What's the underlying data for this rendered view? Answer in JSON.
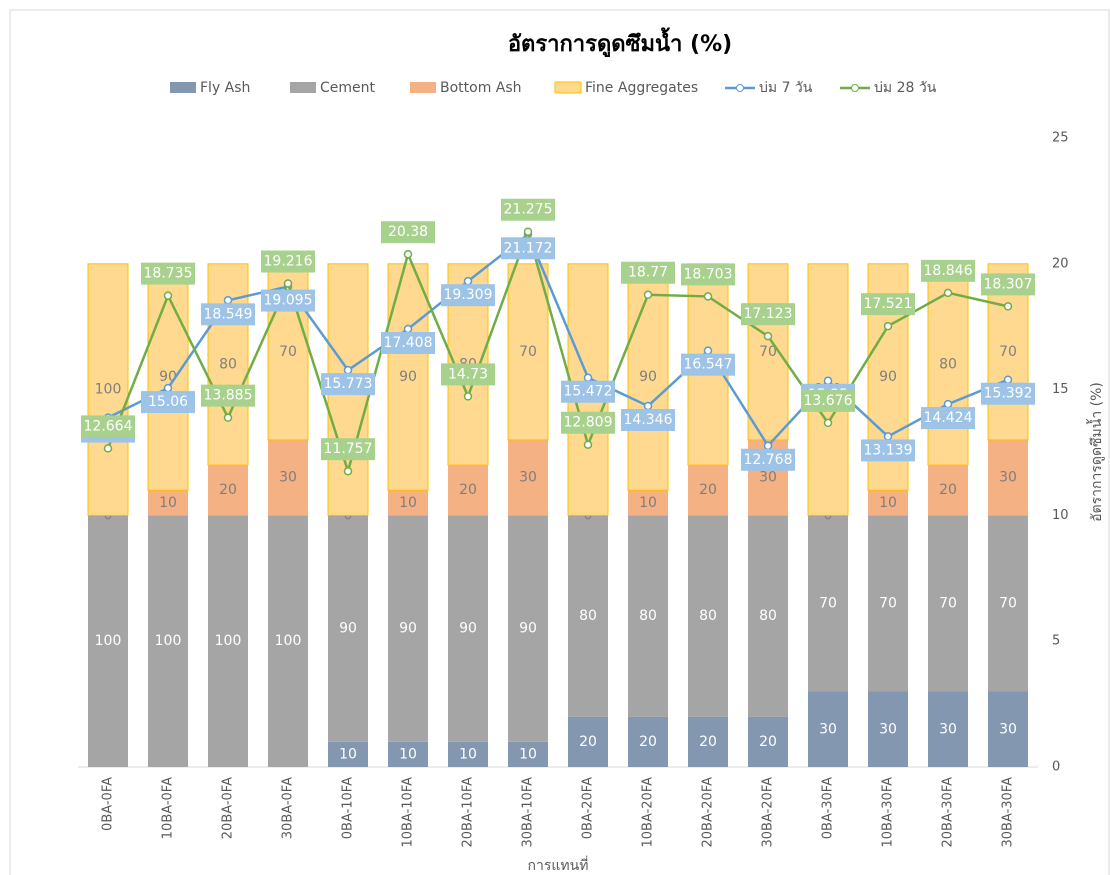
{
  "chart_data": {
    "type": "bar",
    "title": "อัตราการดูดซึมน้ำ  (%)",
    "x_label": "การแทนที่",
    "y2_label": "อัตราการดูดซึมน้ำ (%)",
    "categories": [
      "0BA-0FA",
      "10BA-0FA",
      "20BA-0FA",
      "30BA-0FA",
      "0BA-10FA",
      "10BA-10FA",
      "20BA-10FA",
      "30BA-10FA",
      "0BA-20FA",
      "10BA-20FA",
      "20BA-20FA",
      "30BA-20FA",
      "0BA-30FA",
      "10BA-30FA",
      "20BA-30FA",
      "30BA-30FA"
    ],
    "ylim": [
      0,
      250
    ],
    "y2lim": [
      0,
      25
    ],
    "y2ticks": [
      0,
      5,
      10,
      15,
      20,
      25
    ],
    "grid": false,
    "legend": "top",
    "series": [
      {
        "name": "Fly Ash",
        "type": "bar",
        "color": "#8497b0",
        "label_color": "#ffffff",
        "values": [
          0,
          0,
          0,
          0,
          10,
          10,
          10,
          10,
          20,
          20,
          20,
          20,
          30,
          30,
          30,
          30
        ],
        "value_labels": [
          null,
          null,
          null,
          null,
          "10",
          "10",
          "10",
          "10",
          "20",
          "20",
          "20",
          "20",
          "30",
          "30",
          "30",
          "30"
        ]
      },
      {
        "name": "Cement",
        "type": "bar",
        "color": "#a5a5a5",
        "label_color": "#ffffff",
        "values": [
          100,
          100,
          100,
          100,
          90,
          90,
          90,
          90,
          80,
          80,
          80,
          80,
          70,
          70,
          70,
          70
        ]
      },
      {
        "name": "Bottom Ash",
        "type": "bar",
        "color": "#f4b183",
        "label_color": "#7f7f7f",
        "values": [
          0,
          10,
          20,
          30,
          0,
          10,
          20,
          30,
          0,
          10,
          20,
          30,
          0,
          10,
          20,
          30
        ]
      },
      {
        "name": "Fine Aggregates",
        "type": "bar",
        "color": "#ffd98f",
        "stroke": "#ffc000",
        "label_color": "#7f7f7f",
        "values": [
          100,
          90,
          80,
          70,
          100,
          90,
          80,
          70,
          100,
          90,
          80,
          70,
          100,
          90,
          80,
          70
        ]
      },
      {
        "name": "บ่ม 7 วัน",
        "type": "line",
        "axis": "y2",
        "color": "#5b9bd5",
        "label_fill": "#9dc3e6",
        "values": [
          13.888,
          15.06,
          18.549,
          19.095,
          15.773,
          17.408,
          19.309,
          21.172,
          15.472,
          14.346,
          16.547,
          12.768,
          15.35,
          13.139,
          14.424,
          15.392
        ]
      },
      {
        "name": "บ่ม 28 วัน",
        "type": "line",
        "axis": "y2",
        "color": "#70ad47",
        "label_fill": "#a9d18e",
        "values": [
          12.664,
          18.735,
          13.885,
          19.216,
          11.757,
          20.38,
          14.73,
          21.275,
          12.809,
          18.77,
          18.703,
          17.123,
          13.676,
          17.521,
          18.846,
          18.307
        ]
      }
    ]
  }
}
